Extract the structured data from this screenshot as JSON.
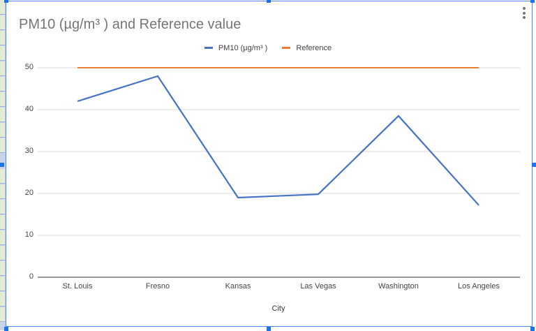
{
  "chart_data": {
    "type": "line",
    "title": "PM10 (µg/m³ ) and Reference value",
    "xlabel": "City",
    "ylabel": "",
    "categories": [
      "St. Louis",
      "Fresno",
      "Kansas",
      "Las Vegas",
      "Washington",
      "Los Angeles"
    ],
    "series": [
      {
        "name": "PM10 (µg/m³ )",
        "color": "#4472c4",
        "values": [
          42,
          48,
          19,
          19.8,
          38.5,
          17.2
        ]
      },
      {
        "name": "Reference",
        "color": "#ed7d31",
        "values": [
          50,
          50,
          50,
          50,
          50,
          50
        ]
      }
    ],
    "ylim": [
      0,
      50
    ],
    "yticks": [
      0,
      10,
      20,
      30,
      40,
      50
    ],
    "grid": true,
    "legend_position": "top"
  },
  "ui": {
    "menu_icon": "more-vert-icon"
  }
}
